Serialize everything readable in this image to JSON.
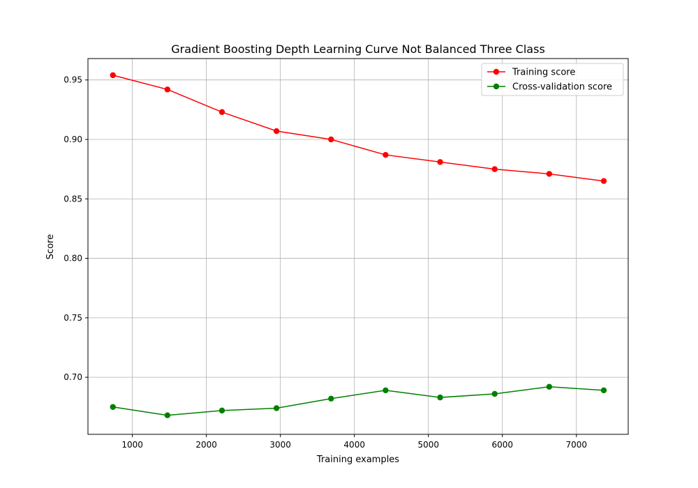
{
  "chart_data": {
    "type": "line",
    "title": "Gradient Boosting Depth Learning Curve Not Balanced Three Class",
    "xlabel": "Training examples",
    "ylabel": "Score",
    "x": [
      737,
      1474,
      2211,
      2948,
      3685,
      4422,
      5159,
      5896,
      6633,
      7370
    ],
    "xlim": [
      400,
      7700
    ],
    "ylim": [
      0.652,
      0.968
    ],
    "xticks": [
      1000,
      2000,
      3000,
      4000,
      5000,
      6000,
      7000
    ],
    "xtick_labels": [
      "1000",
      "2000",
      "3000",
      "4000",
      "5000",
      "6000",
      "7000"
    ],
    "yticks": [
      0.7,
      0.75,
      0.8,
      0.85,
      0.9,
      0.95
    ],
    "ytick_labels": [
      "0.70",
      "0.75",
      "0.80",
      "0.85",
      "0.90",
      "0.95"
    ],
    "grid": true,
    "legend_position": "top-right",
    "series": [
      {
        "name": "Training score",
        "color": "#ff0000",
        "values": [
          0.954,
          0.942,
          0.923,
          0.907,
          0.9,
          0.887,
          0.881,
          0.875,
          0.871,
          0.865
        ]
      },
      {
        "name": "Cross-validation score",
        "color": "#008000",
        "values": [
          0.675,
          0.668,
          0.672,
          0.674,
          0.682,
          0.689,
          0.683,
          0.686,
          0.692,
          0.689
        ]
      }
    ]
  }
}
